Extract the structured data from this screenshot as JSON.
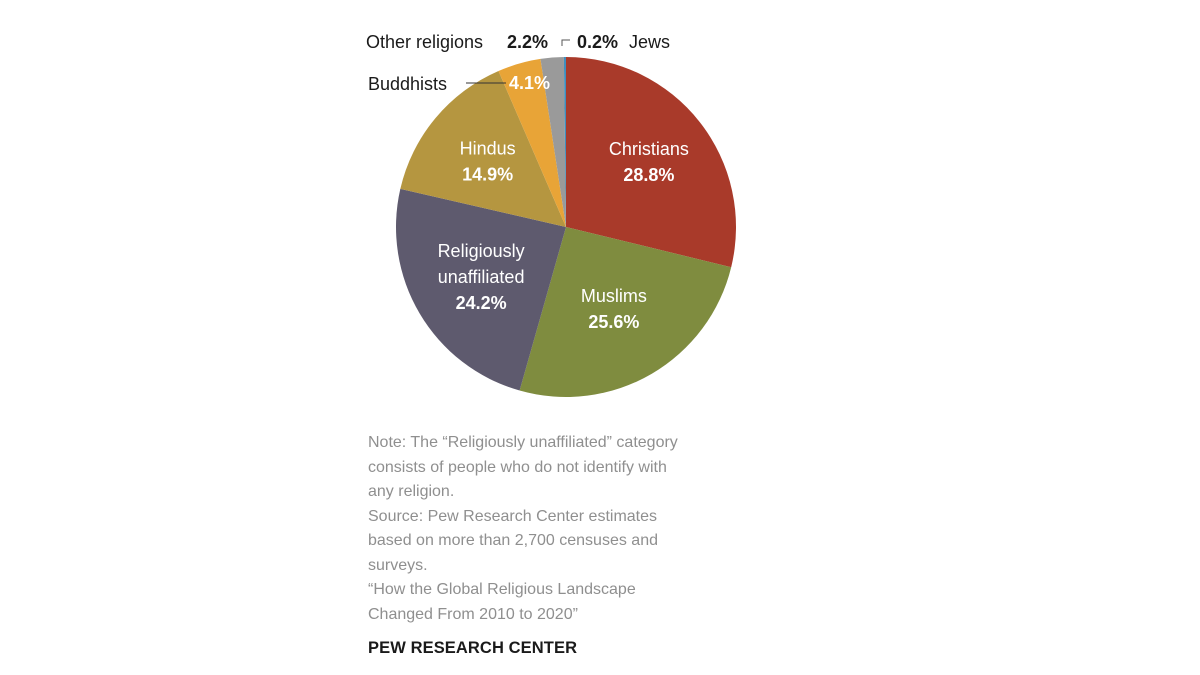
{
  "chart_data": {
    "type": "pie",
    "start": "top, clockwise",
    "slices": [
      {
        "key": "christians",
        "label": "Christians",
        "value": 28.8,
        "value_label": "28.8%",
        "color": "#a93a2a"
      },
      {
        "key": "muslims",
        "label": "Muslims",
        "value": 25.6,
        "value_label": "25.6%",
        "color": "#7f8c3f"
      },
      {
        "key": "unaffiliated",
        "label": "Religiously unaffiliated",
        "label_lines": [
          "Religiously",
          "unaffiliated"
        ],
        "value": 24.2,
        "value_label": "24.2%",
        "color": "#5e5a6e"
      },
      {
        "key": "hindus",
        "label": "Hindus",
        "value": 14.9,
        "value_label": "14.9%",
        "color": "#b59640"
      },
      {
        "key": "buddhists",
        "label": "Buddhists",
        "value": 4.1,
        "value_label": "4.1%",
        "color": "#e8a437"
      },
      {
        "key": "other",
        "label": "Other religions",
        "value": 2.2,
        "value_label": "2.2%",
        "color": "#9a9a9a"
      },
      {
        "key": "jews",
        "label": "Jews",
        "value": 0.2,
        "value_label": "0.2%",
        "color": "#3f8fbf"
      }
    ]
  },
  "note": {
    "lines": [
      "Note: The “Religiously unaffiliated” category",
      "consists of people who do not identify with",
      "any religion.",
      "Source: Pew Research Center estimates",
      "based on more than 2,700 censuses and",
      "surveys.",
      "“How the Global Religious Landscape",
      "Changed From 2010 to 2020”"
    ]
  },
  "brand": "PEW RESEARCH CENTER"
}
